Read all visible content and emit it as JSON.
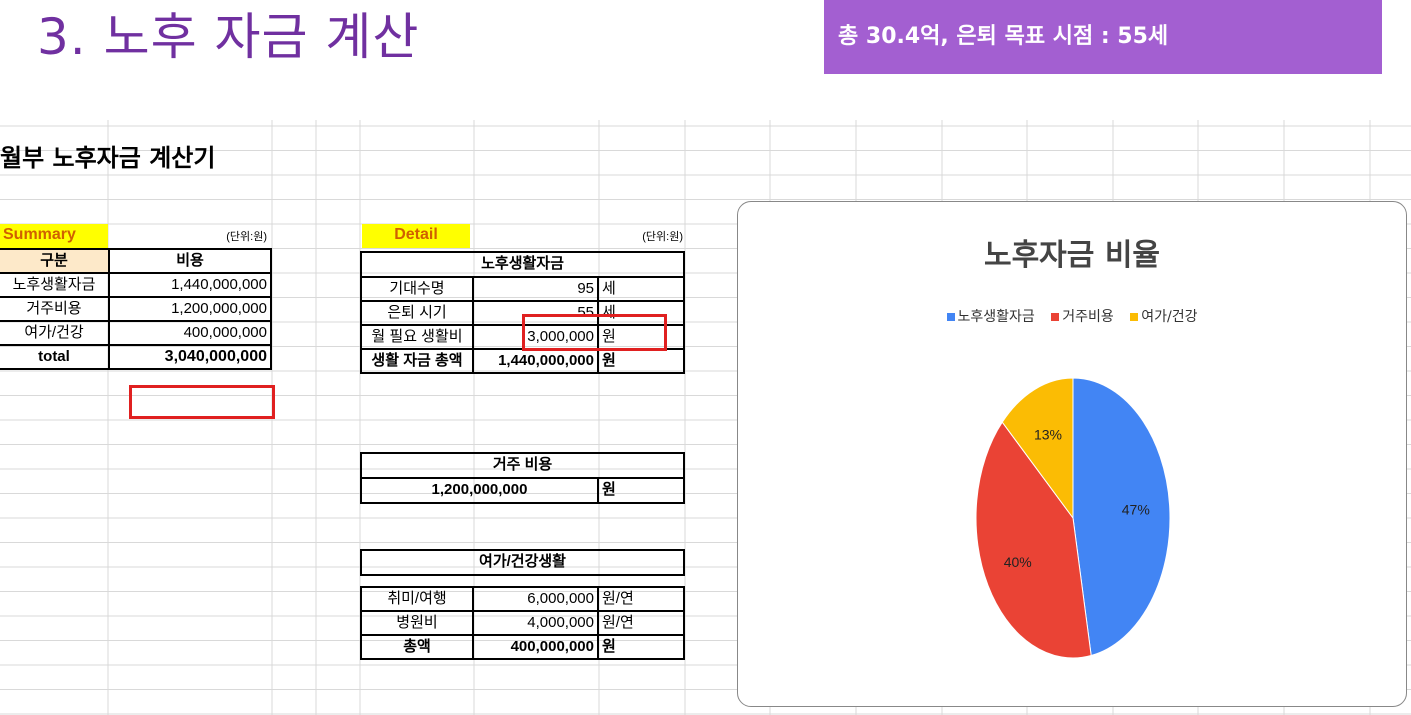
{
  "slide": {
    "title": "3. 노후 자금 계산",
    "headline": "총 30.4억, 은퇴 목표 시점 : 55세"
  },
  "sheet": {
    "title": "월부 노후자금 계산기"
  },
  "summary": {
    "label": "Summary",
    "unit": "(단위:원)",
    "col_category": "구분",
    "col_cost": "비용",
    "rows": [
      {
        "category": "노후생활자금",
        "cost": "1,440,000,000"
      },
      {
        "category": "거주비용",
        "cost": "1,200,000,000"
      },
      {
        "category": "여가/건강",
        "cost": "400,000,000"
      }
    ],
    "total_label": "total",
    "total_value": "3,040,000,000"
  },
  "detail": {
    "label": "Detail",
    "unit": "(단위:원)",
    "living": {
      "header": "노후생활자금",
      "rows": [
        {
          "label": "기대수명",
          "value": "95",
          "unit": "세"
        },
        {
          "label": "은퇴 시기",
          "value": "55",
          "unit": "세"
        },
        {
          "label": "월 필요 생활비",
          "value": "3,000,000",
          "unit": "원"
        },
        {
          "label": "생활 자금 총액",
          "value": "1,440,000,000",
          "unit": "원"
        }
      ]
    },
    "housing": {
      "header": "거주 비용",
      "value": "1,200,000,000",
      "unit": "원"
    },
    "leisure": {
      "header": "여가/건강생활",
      "rows": [
        {
          "label": "취미/여행",
          "value": "6,000,000",
          "unit": "원/연"
        },
        {
          "label": "병원비",
          "value": "4,000,000",
          "unit": "원/연"
        },
        {
          "label": "총액",
          "value": "400,000,000",
          "unit": "원"
        }
      ]
    }
  },
  "chart_data": {
    "type": "pie",
    "title": "노후자금 비율",
    "legend_position": "top",
    "categories": [
      "노후생활자금",
      "거주비용",
      "여가/건강"
    ],
    "values": [
      47,
      40,
      13
    ],
    "labels": [
      "47%",
      "40%",
      "13%"
    ],
    "colors": [
      "#4285f4",
      "#ea4335",
      "#fbbc04"
    ]
  }
}
